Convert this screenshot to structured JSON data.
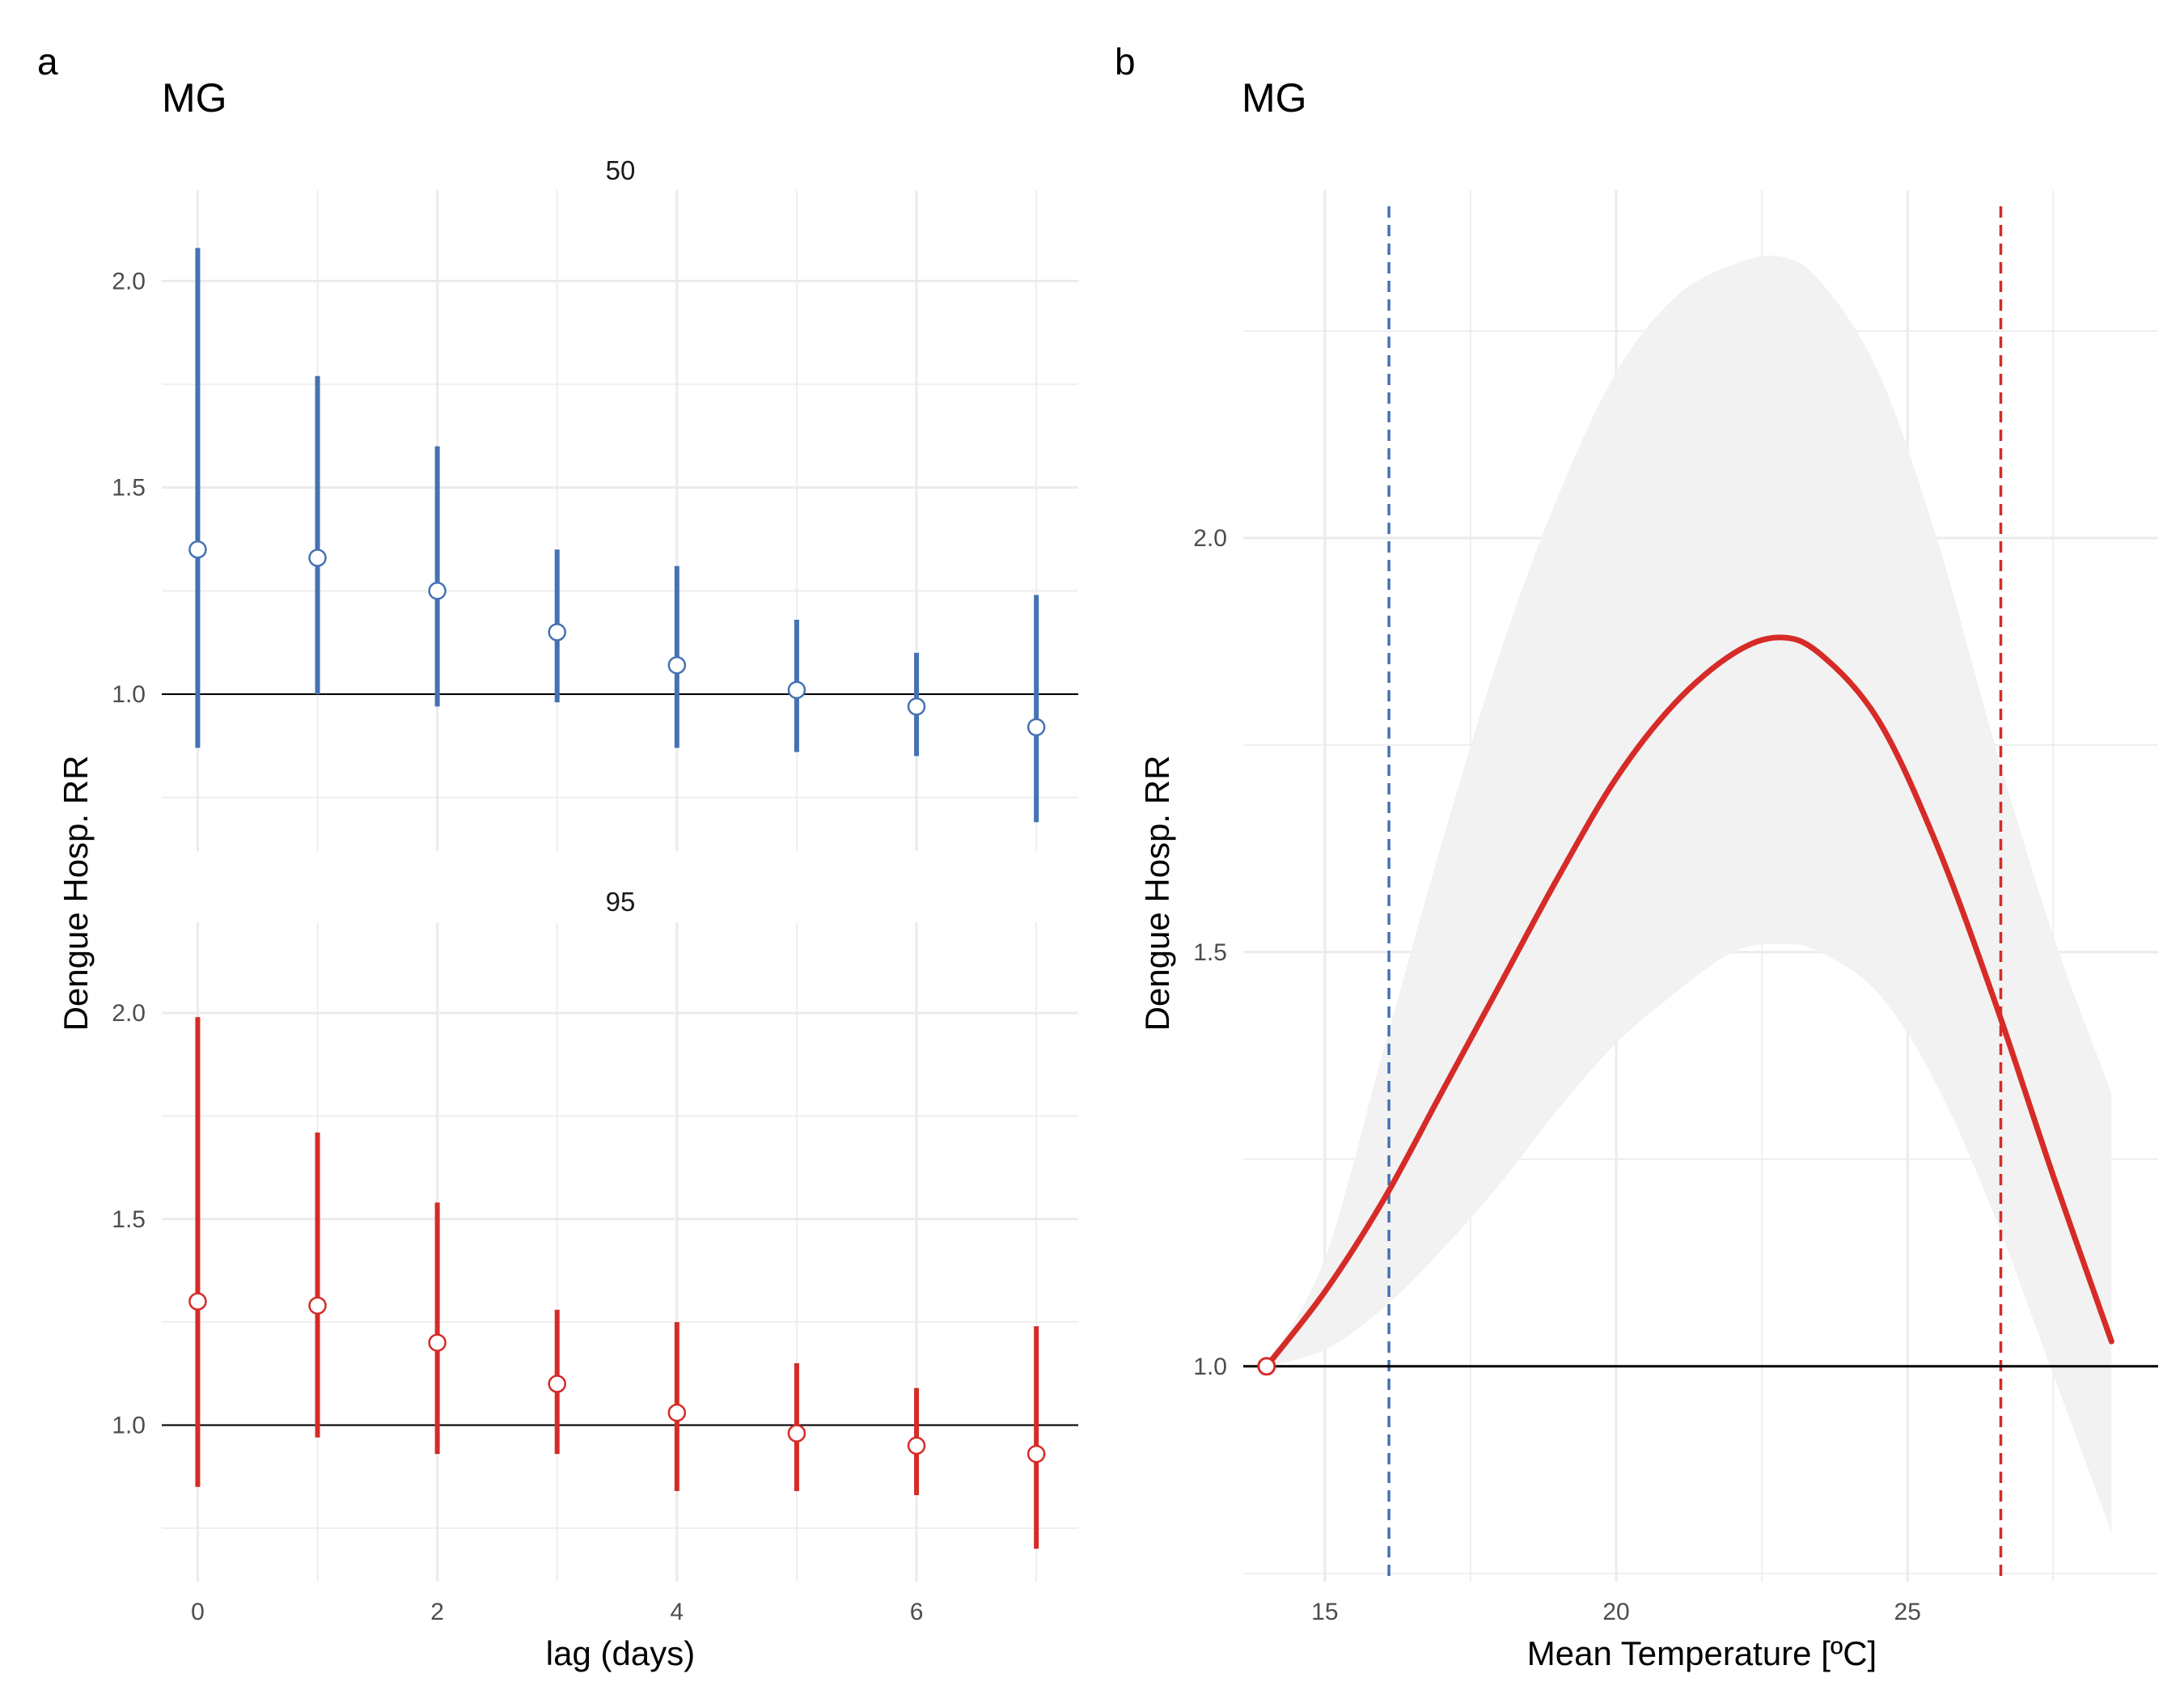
{
  "colors": {
    "blue": "#4472b3",
    "red": "#d62b27",
    "grid": "#ebebeb",
    "ribbon": "#f2f2f2",
    "reference": "#000000"
  },
  "chart_data": [
    {
      "type": "scatter",
      "panel_tag": "a",
      "title": "MG",
      "xlabel": "lag (days)",
      "ylabel": "Dengue Hosp. RR",
      "xlim": [
        -0.3,
        7.35
      ],
      "x_ticks": [
        0,
        2,
        4,
        6
      ],
      "x_tick_labels": [
        "0",
        "2",
        "4",
        "6"
      ],
      "grid": true,
      "reference_line": 1.0,
      "facets": [
        {
          "strip": "50",
          "color": "#4472b3",
          "ylim": [
            0.62,
            2.22
          ],
          "y_ticks": [
            1.0,
            1.5,
            2.0
          ],
          "y_tick_labels": [
            "1.0",
            "1.5",
            "2.0"
          ],
          "x": [
            0,
            1,
            2,
            3,
            4,
            5,
            6,
            7
          ],
          "estimate": [
            1.35,
            1.33,
            1.25,
            1.15,
            1.07,
            1.01,
            0.97,
            0.92
          ],
          "lower": [
            0.87,
            1.0,
            0.97,
            0.98,
            0.87,
            0.86,
            0.85,
            0.69
          ],
          "upper": [
            2.08,
            1.77,
            1.6,
            1.35,
            1.31,
            1.18,
            1.1,
            1.24
          ]
        },
        {
          "strip": "95",
          "color": "#d62b27",
          "ylim": [
            0.62,
            2.22
          ],
          "y_ticks": [
            1.0,
            1.5,
            2.0
          ],
          "y_tick_labels": [
            "1.0",
            "1.5",
            "2.0"
          ],
          "x": [
            0,
            1,
            2,
            3,
            4,
            5,
            6,
            7
          ],
          "estimate": [
            1.3,
            1.29,
            1.2,
            1.1,
            1.03,
            0.98,
            0.95,
            0.93
          ],
          "lower": [
            0.85,
            0.97,
            0.93,
            0.93,
            0.84,
            0.84,
            0.83,
            0.7
          ],
          "upper": [
            1.99,
            1.71,
            1.54,
            1.28,
            1.25,
            1.15,
            1.09,
            1.24
          ]
        }
      ]
    },
    {
      "type": "line",
      "panel_tag": "b",
      "title": "MG",
      "xlabel": "Mean Temperature [ºC]",
      "ylabel": "Dengue Hosp. RR",
      "xlim": [
        13.6,
        29.3
      ],
      "ylim": [
        0.74,
        2.42
      ],
      "x_ticks": [
        15,
        20,
        25
      ],
      "x_tick_labels": [
        "15",
        "20",
        "25"
      ],
      "y_ticks": [
        1.0,
        1.5,
        2.0
      ],
      "y_tick_labels": [
        "1.0",
        "1.5",
        "2.0"
      ],
      "grid": true,
      "reference_line": 1.0,
      "vlines": [
        {
          "x": 16.1,
          "color": "#4472b3",
          "style": "dashed"
        },
        {
          "x": 26.6,
          "color": "#d62b27",
          "style": "dashed"
        }
      ],
      "reference_point": {
        "x": 14.0,
        "y": 1.0
      },
      "series": [
        {
          "color": "#d62b27",
          "x": [
            14.0,
            15.0,
            16.0,
            17.0,
            18.0,
            19.0,
            20.0,
            21.0,
            22.0,
            22.8,
            23.5,
            24.5,
            25.5,
            26.5,
            27.5,
            28.5
          ],
          "y": [
            1.0,
            1.09,
            1.2,
            1.33,
            1.46,
            1.59,
            1.71,
            1.8,
            1.86,
            1.88,
            1.86,
            1.78,
            1.63,
            1.44,
            1.23,
            1.03
          ],
          "lower": [
            1.0,
            1.02,
            1.07,
            1.14,
            1.22,
            1.31,
            1.39,
            1.45,
            1.5,
            1.51,
            1.5,
            1.45,
            1.34,
            1.18,
            0.99,
            0.8
          ],
          "upper": [
            1.0,
            1.13,
            1.38,
            1.63,
            1.86,
            2.05,
            2.2,
            2.29,
            2.33,
            2.34,
            2.31,
            2.2,
            2.0,
            1.75,
            1.52,
            1.33
          ]
        }
      ]
    }
  ]
}
